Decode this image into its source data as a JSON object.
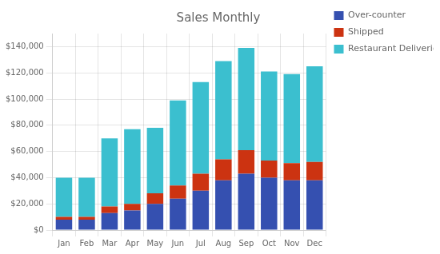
{
  "chart_data": {
    "type": "bar",
    "title": "Sales Monthly",
    "categories": [
      "Jan",
      "Feb",
      "Mar",
      "Apr",
      "May",
      "Jun",
      "Jul",
      "Aug",
      "Sep",
      "Oct",
      "Nov",
      "Dec"
    ],
    "series": [
      {
        "name": "Over-counter",
        "color": "#3550B0",
        "values": [
          8000,
          8000,
          13000,
          15000,
          20000,
          24000,
          30000,
          38000,
          43000,
          40000,
          38000,
          38000
        ]
      },
      {
        "name": "Shipped",
        "color": "#CC3311",
        "values": [
          2000,
          2000,
          5000,
          5000,
          8000,
          10000,
          13000,
          16000,
          18000,
          13000,
          13000,
          14000
        ]
      },
      {
        "name": "Restaurant Deliveries",
        "color": "#3BBFCF",
        "values": [
          30000,
          30000,
          52000,
          57000,
          50000,
          65000,
          70000,
          75000,
          78000,
          68000,
          68000,
          73000
        ]
      }
    ],
    "stacked": true,
    "ylim": [
      0,
      150000
    ],
    "yticks": [
      {
        "value": 0,
        "label": "$0"
      },
      {
        "value": 20000,
        "label": "$20,000"
      },
      {
        "value": 40000,
        "label": "$40,000"
      },
      {
        "value": 60000,
        "label": "$60,000"
      },
      {
        "value": 80000,
        "label": "$80,000"
      },
      {
        "value": 100000,
        "label": "$100,000"
      },
      {
        "value": 120000,
        "label": "$120,000"
      },
      {
        "value": 140000,
        "label": "$140,000"
      }
    ],
    "grid": true,
    "legend": "right"
  }
}
